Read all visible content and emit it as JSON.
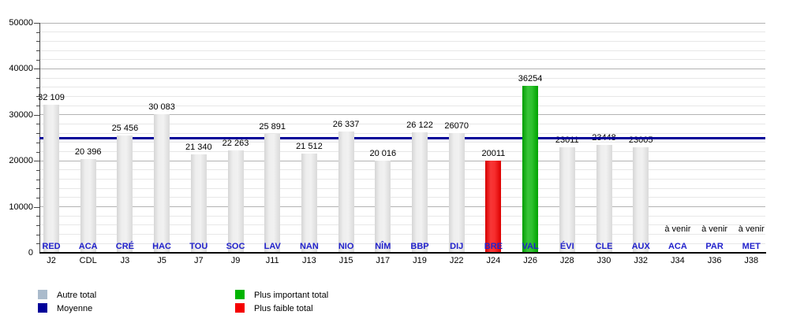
{
  "chart_data": {
    "type": "bar",
    "title": "",
    "xlabel": "",
    "ylabel": "",
    "ylim": [
      0,
      50000
    ],
    "y_major_step": 10000,
    "y_minor_step": 2000,
    "y_tick_labels": [
      "0",
      "10000",
      "20000",
      "30000",
      "40000",
      "50000"
    ],
    "grid": "on",
    "legend_position": "bottom",
    "average_line": {
      "label": "Moyenne",
      "value": 24901,
      "color": "#000099"
    },
    "upcoming_text": "à venir",
    "categories": [
      {
        "club": "RED",
        "match": "J2",
        "value": 32109,
        "value_label": "32 109",
        "type": "other"
      },
      {
        "club": "ACA",
        "match": "CDL",
        "value": 20396,
        "value_label": "20 396",
        "type": "other"
      },
      {
        "club": "CRÉ",
        "match": "J3",
        "value": 25456,
        "value_label": "25 456",
        "type": "other"
      },
      {
        "club": "HAC",
        "match": "J5",
        "value": 30083,
        "value_label": "30 083",
        "type": "other"
      },
      {
        "club": "TOU",
        "match": "J7",
        "value": 21340,
        "value_label": "21 340",
        "type": "other"
      },
      {
        "club": "SOC",
        "match": "J9",
        "value": 22263,
        "value_label": "22 263",
        "type": "other"
      },
      {
        "club": "LAV",
        "match": "J11",
        "value": 25891,
        "value_label": "25 891",
        "type": "other"
      },
      {
        "club": "NAN",
        "match": "J13",
        "value": 21512,
        "value_label": "21 512",
        "type": "other"
      },
      {
        "club": "NIO",
        "match": "J15",
        "value": 26337,
        "value_label": "26 337",
        "type": "other"
      },
      {
        "club": "NÎM",
        "match": "J17",
        "value": 20016,
        "value_label": "20 016",
        "type": "other"
      },
      {
        "club": "BBP",
        "match": "J19",
        "value": 26122,
        "value_label": "26 122",
        "type": "other"
      },
      {
        "club": "DIJ",
        "match": "J22",
        "value": 26070,
        "value_label": "26070",
        "type": "other"
      },
      {
        "club": "BRE",
        "match": "J24",
        "value": 20011,
        "value_label": "20011",
        "type": "lowest"
      },
      {
        "club": "VAL",
        "match": "J26",
        "value": 36254,
        "value_label": "36254",
        "type": "highest"
      },
      {
        "club": "ÉVI",
        "match": "J28",
        "value": 23011,
        "value_label": "23011",
        "type": "other"
      },
      {
        "club": "CLE",
        "match": "J30",
        "value": 23448,
        "value_label": "23448",
        "type": "other"
      },
      {
        "club": "AUX",
        "match": "J32",
        "value": 23005,
        "value_label": "23005",
        "type": "other"
      },
      {
        "club": "ACA",
        "match": "J34",
        "value": null,
        "value_label": "",
        "type": "upcoming"
      },
      {
        "club": "PAR",
        "match": "J36",
        "value": null,
        "value_label": "",
        "type": "upcoming"
      },
      {
        "club": "MET",
        "match": "J38",
        "value": null,
        "value_label": "",
        "type": "upcoming"
      }
    ],
    "colors": {
      "other_bar": "#e2e2e2",
      "highest_bar": "#00b400",
      "lowest_bar": "#f50000",
      "average_line": "#000099",
      "club_label": "#2222cc",
      "legend_other_swatch": "#aabbcc"
    },
    "legend": [
      {
        "label": "Autre total",
        "color": "#aabbcc",
        "column": 0,
        "row": 0
      },
      {
        "label": "Moyenne",
        "color": "#000099",
        "column": 0,
        "row": 1
      },
      {
        "label": "Plus important total",
        "color": "#00b400",
        "column": 1,
        "row": 0
      },
      {
        "label": "Plus faible total",
        "color": "#f50000",
        "column": 1,
        "row": 1
      }
    ]
  }
}
